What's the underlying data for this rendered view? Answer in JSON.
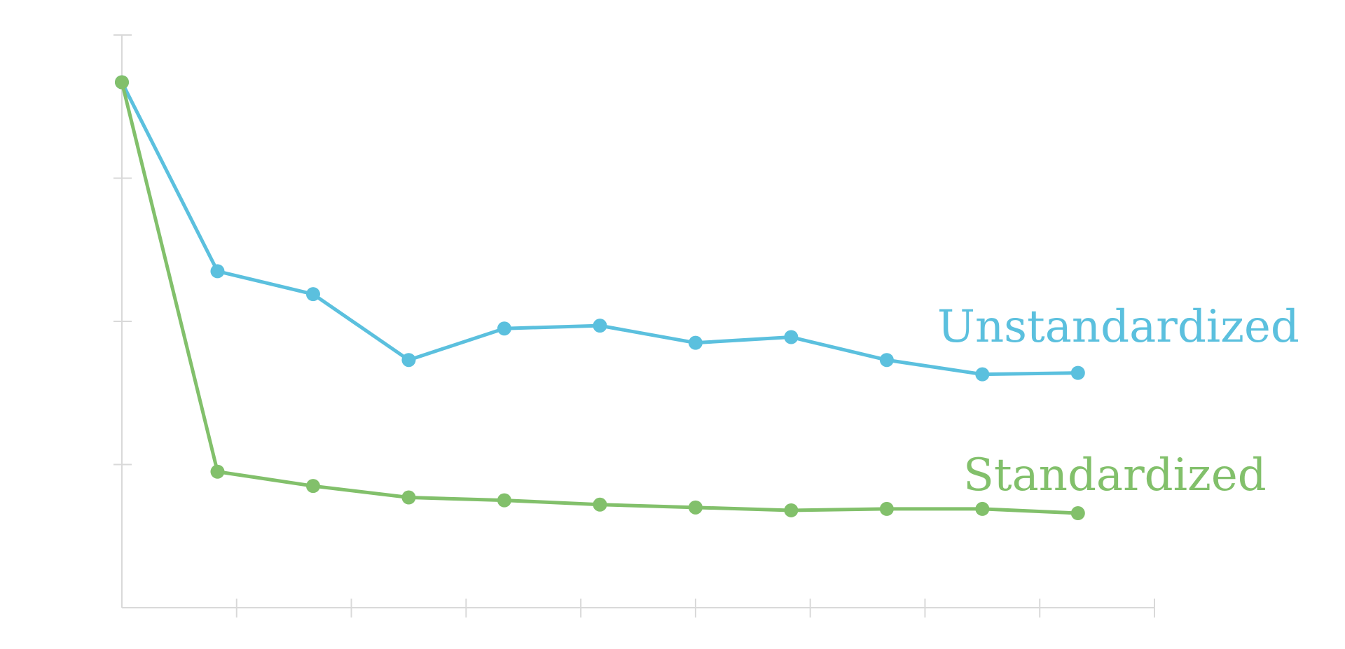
{
  "chart_data": {
    "type": "line",
    "title": "",
    "xlabel": "",
    "ylabel": "",
    "x": [
      0,
      1,
      2,
      3,
      4,
      5,
      6,
      7,
      8,
      9,
      10
    ],
    "xlim": [
      0,
      10.8
    ],
    "ylim": [
      0,
      4
    ],
    "x_tick_count": 9,
    "y_tick_count": 4,
    "grid": false,
    "legend": "inline-right",
    "series": [
      {
        "name": "Unstandardized",
        "color": "#5bc0de",
        "values": [
          3.67,
          2.35,
          2.19,
          1.73,
          1.95,
          1.97,
          1.85,
          1.89,
          1.73,
          1.63,
          1.64
        ]
      },
      {
        "name": "Standardized",
        "color": "#82c06b",
        "values": [
          3.67,
          0.95,
          0.85,
          0.77,
          0.75,
          0.72,
          0.7,
          0.68,
          0.69,
          0.69,
          0.66
        ]
      }
    ]
  }
}
